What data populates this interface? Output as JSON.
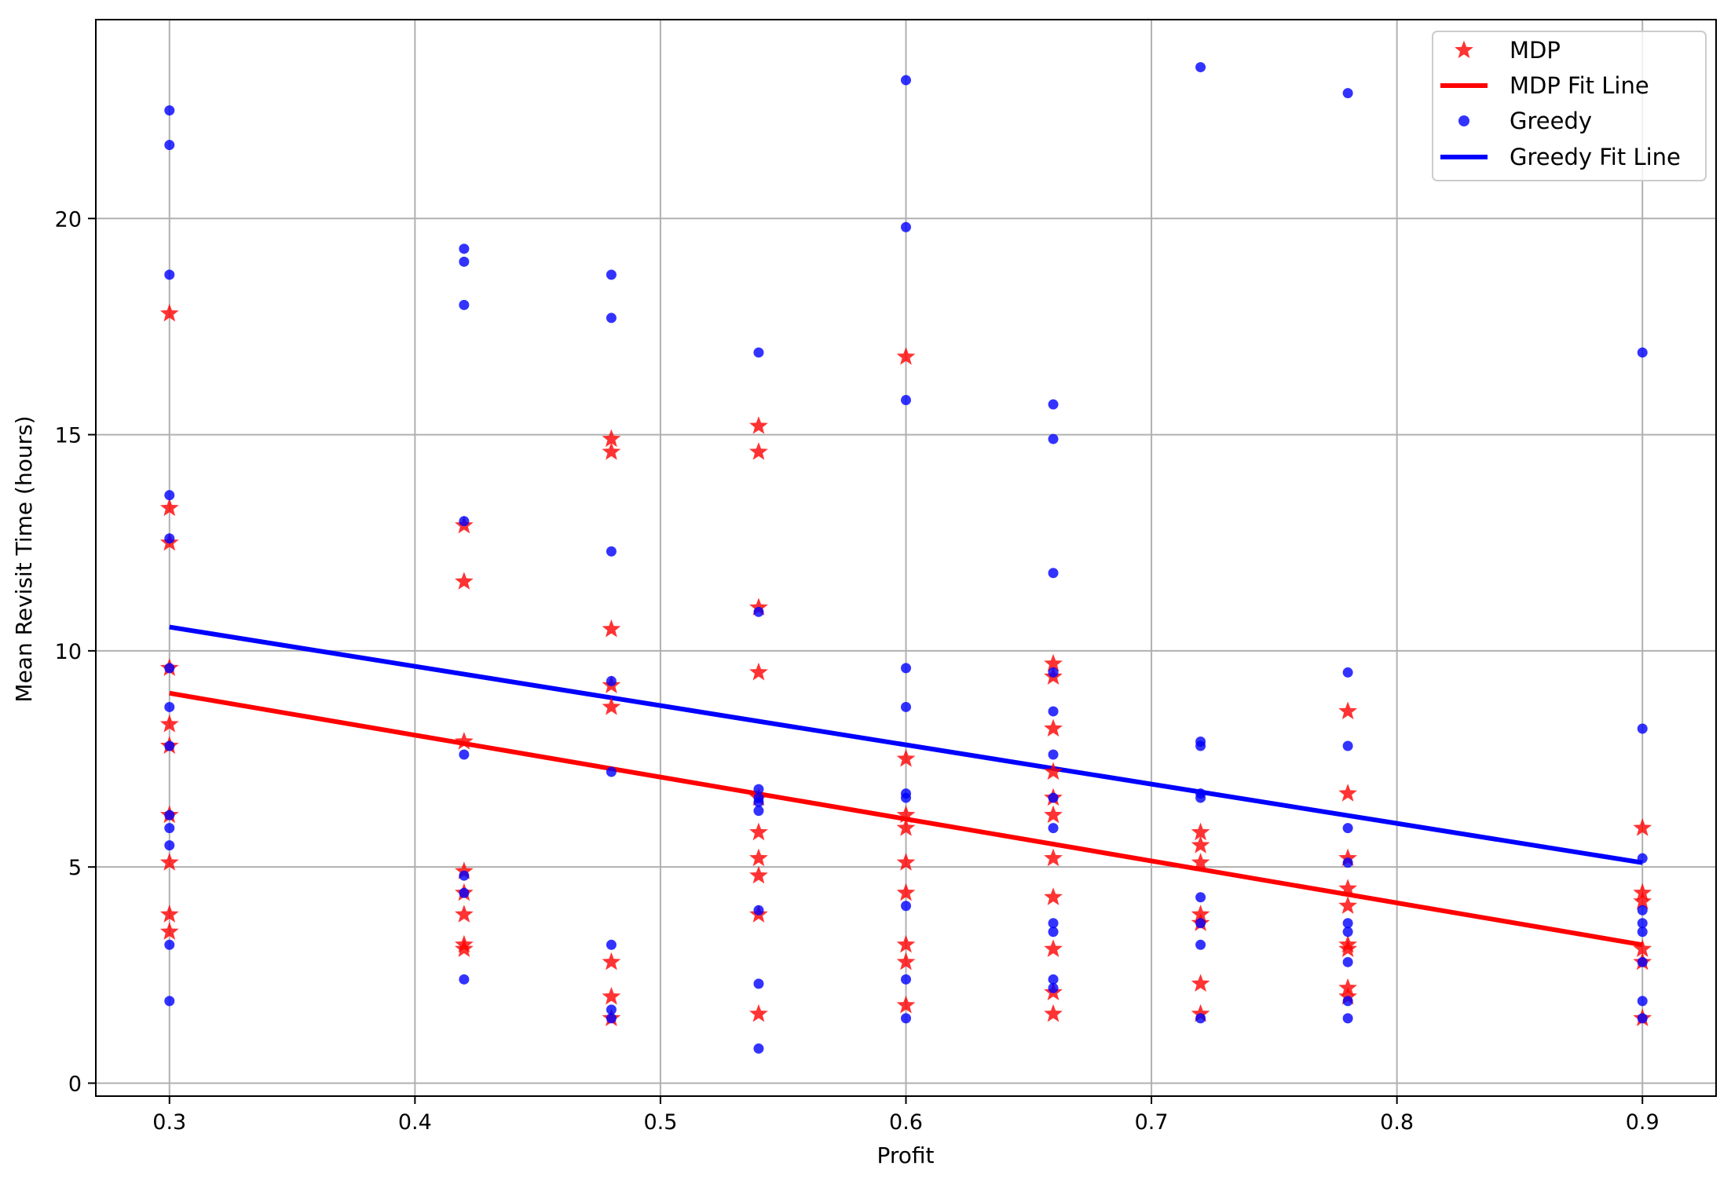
{
  "chart_data": {
    "type": "scatter",
    "xlabel": "Profit",
    "ylabel": "Mean Revisit Time (hours)",
    "xlim": [
      0.27,
      0.93
    ],
    "ylim": [
      -0.3,
      24.6
    ],
    "x_ticks": [
      0.3,
      0.4,
      0.5,
      0.6,
      0.7,
      0.8,
      0.9
    ],
    "x_tick_labels": [
      "0.3",
      "0.4",
      "0.5",
      "0.6",
      "0.7",
      "0.8",
      "0.9"
    ],
    "y_ticks": [
      0,
      5,
      10,
      15,
      20
    ],
    "y_tick_labels": [
      "0",
      "5",
      "10",
      "15",
      "20"
    ],
    "grid": true,
    "legend_position": "top-right",
    "legend": [
      "MDP",
      "MDP Fit Line",
      "Greedy",
      "Greedy Fit Line"
    ],
    "colors": {
      "mdp": "#ff0000",
      "greedy": "#0000ff",
      "grid": "#b0b0b0"
    },
    "series": [
      {
        "name": "MDP",
        "kind": "scatter",
        "marker": "star",
        "color": "#ff0000",
        "points": [
          [
            0.3,
            17.8
          ],
          [
            0.3,
            13.3
          ],
          [
            0.3,
            12.5
          ],
          [
            0.3,
            9.6
          ],
          [
            0.3,
            8.3
          ],
          [
            0.3,
            7.8
          ],
          [
            0.3,
            6.2
          ],
          [
            0.3,
            5.1
          ],
          [
            0.3,
            3.9
          ],
          [
            0.3,
            3.5
          ],
          [
            0.42,
            12.9
          ],
          [
            0.42,
            11.6
          ],
          [
            0.42,
            7.9
          ],
          [
            0.42,
            4.9
          ],
          [
            0.42,
            4.4
          ],
          [
            0.42,
            3.9
          ],
          [
            0.42,
            3.2
          ],
          [
            0.42,
            3.1
          ],
          [
            0.48,
            14.9
          ],
          [
            0.48,
            14.6
          ],
          [
            0.48,
            10.5
          ],
          [
            0.48,
            9.2
          ],
          [
            0.48,
            8.7
          ],
          [
            0.48,
            2.8
          ],
          [
            0.48,
            2.0
          ],
          [
            0.48,
            1.5
          ],
          [
            0.54,
            15.2
          ],
          [
            0.54,
            14.6
          ],
          [
            0.54,
            11.0
          ],
          [
            0.54,
            9.5
          ],
          [
            0.54,
            6.6
          ],
          [
            0.54,
            5.8
          ],
          [
            0.54,
            5.2
          ],
          [
            0.54,
            4.8
          ],
          [
            0.54,
            3.9
          ],
          [
            0.54,
            1.6
          ],
          [
            0.6,
            16.8
          ],
          [
            0.6,
            7.5
          ],
          [
            0.6,
            6.2
          ],
          [
            0.6,
            5.9
          ],
          [
            0.6,
            5.1
          ],
          [
            0.6,
            4.4
          ],
          [
            0.6,
            3.2
          ],
          [
            0.6,
            2.8
          ],
          [
            0.6,
            1.8
          ],
          [
            0.66,
            9.7
          ],
          [
            0.66,
            9.4
          ],
          [
            0.66,
            8.2
          ],
          [
            0.66,
            7.2
          ],
          [
            0.66,
            6.6
          ],
          [
            0.66,
            6.2
          ],
          [
            0.66,
            5.2
          ],
          [
            0.66,
            4.3
          ],
          [
            0.66,
            3.1
          ],
          [
            0.66,
            2.1
          ],
          [
            0.66,
            1.6
          ],
          [
            0.72,
            5.8
          ],
          [
            0.72,
            5.5
          ],
          [
            0.72,
            5.1
          ],
          [
            0.72,
            3.9
          ],
          [
            0.72,
            3.7
          ],
          [
            0.72,
            2.3
          ],
          [
            0.72,
            1.6
          ],
          [
            0.78,
            8.6
          ],
          [
            0.78,
            6.7
          ],
          [
            0.78,
            5.2
          ],
          [
            0.78,
            4.5
          ],
          [
            0.78,
            4.1
          ],
          [
            0.78,
            3.2
          ],
          [
            0.78,
            3.1
          ],
          [
            0.78,
            2.2
          ],
          [
            0.78,
            2.0
          ],
          [
            0.9,
            5.9
          ],
          [
            0.9,
            4.4
          ],
          [
            0.9,
            4.2
          ],
          [
            0.9,
            3.1
          ],
          [
            0.9,
            2.8
          ],
          [
            0.9,
            1.5
          ]
        ]
      },
      {
        "name": "MDP Fit Line",
        "kind": "line",
        "color": "#ff0000",
        "x": [
          0.3,
          0.9
        ],
        "y": [
          9.02,
          3.2
        ]
      },
      {
        "name": "Greedy",
        "kind": "scatter",
        "marker": "circle",
        "color": "#0000ff",
        "points": [
          [
            0.3,
            22.5
          ],
          [
            0.3,
            21.7
          ],
          [
            0.3,
            18.7
          ],
          [
            0.3,
            13.6
          ],
          [
            0.3,
            12.6
          ],
          [
            0.3,
            9.6
          ],
          [
            0.3,
            8.7
          ],
          [
            0.3,
            7.8
          ],
          [
            0.3,
            6.2
          ],
          [
            0.3,
            5.9
          ],
          [
            0.3,
            5.5
          ],
          [
            0.3,
            3.2
          ],
          [
            0.3,
            1.9
          ],
          [
            0.42,
            19.3
          ],
          [
            0.42,
            19.0
          ],
          [
            0.42,
            18.0
          ],
          [
            0.42,
            13.0
          ],
          [
            0.42,
            7.6
          ],
          [
            0.42,
            4.8
          ],
          [
            0.42,
            4.4
          ],
          [
            0.42,
            2.4
          ],
          [
            0.48,
            18.7
          ],
          [
            0.48,
            17.7
          ],
          [
            0.48,
            12.3
          ],
          [
            0.48,
            9.3
          ],
          [
            0.48,
            7.2
          ],
          [
            0.48,
            3.2
          ],
          [
            0.48,
            1.7
          ],
          [
            0.48,
            1.5
          ],
          [
            0.54,
            16.9
          ],
          [
            0.54,
            10.9
          ],
          [
            0.54,
            6.8
          ],
          [
            0.54,
            6.6
          ],
          [
            0.54,
            6.5
          ],
          [
            0.54,
            6.3
          ],
          [
            0.54,
            4.0
          ],
          [
            0.54,
            2.3
          ],
          [
            0.54,
            0.8
          ],
          [
            0.6,
            23.2
          ],
          [
            0.6,
            19.8
          ],
          [
            0.6,
            15.8
          ],
          [
            0.6,
            9.6
          ],
          [
            0.6,
            8.7
          ],
          [
            0.6,
            6.7
          ],
          [
            0.6,
            6.6
          ],
          [
            0.6,
            4.1
          ],
          [
            0.6,
            2.4
          ],
          [
            0.6,
            1.5
          ],
          [
            0.66,
            15.7
          ],
          [
            0.66,
            14.9
          ],
          [
            0.66,
            11.8
          ],
          [
            0.66,
            9.5
          ],
          [
            0.66,
            8.6
          ],
          [
            0.66,
            7.6
          ],
          [
            0.66,
            6.6
          ],
          [
            0.66,
            5.9
          ],
          [
            0.66,
            3.7
          ],
          [
            0.66,
            3.5
          ],
          [
            0.66,
            2.4
          ],
          [
            0.66,
            2.2
          ],
          [
            0.72,
            23.5
          ],
          [
            0.72,
            7.9
          ],
          [
            0.72,
            7.8
          ],
          [
            0.72,
            6.7
          ],
          [
            0.72,
            6.6
          ],
          [
            0.72,
            4.3
          ],
          [
            0.72,
            3.7
          ],
          [
            0.72,
            3.2
          ],
          [
            0.72,
            1.5
          ],
          [
            0.78,
            22.9
          ],
          [
            0.78,
            9.5
          ],
          [
            0.78,
            7.8
          ],
          [
            0.78,
            5.9
          ],
          [
            0.78,
            5.1
          ],
          [
            0.78,
            3.7
          ],
          [
            0.78,
            3.5
          ],
          [
            0.78,
            2.8
          ],
          [
            0.78,
            1.9
          ],
          [
            0.78,
            1.5
          ],
          [
            0.9,
            16.9
          ],
          [
            0.9,
            8.2
          ],
          [
            0.9,
            5.2
          ],
          [
            0.9,
            4.0
          ],
          [
            0.9,
            3.7
          ],
          [
            0.9,
            3.5
          ],
          [
            0.9,
            2.8
          ],
          [
            0.9,
            1.9
          ],
          [
            0.9,
            1.5
          ]
        ]
      },
      {
        "name": "Greedy Fit Line",
        "kind": "line",
        "color": "#0000ff",
        "x": [
          0.3,
          0.9
        ],
        "y": [
          10.55,
          5.1
        ]
      }
    ]
  }
}
